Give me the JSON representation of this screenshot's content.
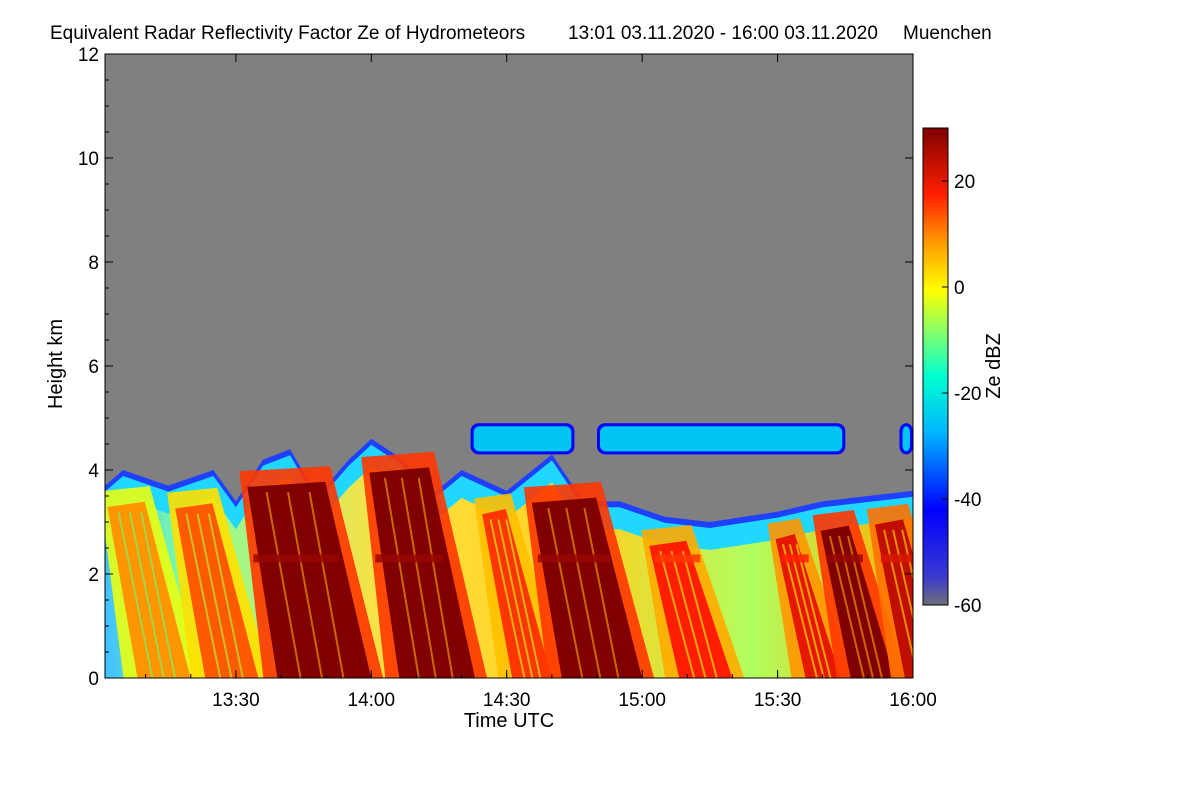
{
  "chart_data": {
    "type": "heatmap",
    "title": "Equivalent Radar Reflectivity Factor Ze of Hydrometeors",
    "time_range": "13:01 03.11.2020 - 16:00 03.11.2020",
    "location": "Muenchen",
    "xlabel": "Time UTC",
    "ylabel": "Height km",
    "x_ticks": [
      "13:30",
      "14:00",
      "14:30",
      "15:00",
      "15:30",
      "16:00"
    ],
    "x_range": [
      "13:01",
      "16:00"
    ],
    "y_ticks": [
      "0",
      "2",
      "4",
      "6",
      "8",
      "10",
      "12"
    ],
    "ylim": [
      0,
      12
    ],
    "colorbar": {
      "label": "Ze dBZ",
      "ticks": [
        "20",
        "0",
        "-20",
        "-40",
        "-60"
      ],
      "range": [
        -60,
        30
      ],
      "missing_color": "#808080"
    },
    "echo_top_km": [
      {
        "t": "13:01",
        "h": 3.7
      },
      {
        "t": "13:05",
        "h": 4.0
      },
      {
        "t": "13:15",
        "h": 3.7
      },
      {
        "t": "13:25",
        "h": 4.0
      },
      {
        "t": "13:30",
        "h": 3.4
      },
      {
        "t": "13:36",
        "h": 4.2
      },
      {
        "t": "13:42",
        "h": 4.4
      },
      {
        "t": "13:48",
        "h": 3.5
      },
      {
        "t": "13:55",
        "h": 4.2
      },
      {
        "t": "14:00",
        "h": 4.6
      },
      {
        "t": "14:07",
        "h": 4.2
      },
      {
        "t": "14:13",
        "h": 3.5
      },
      {
        "t": "14:20",
        "h": 4.0
      },
      {
        "t": "14:30",
        "h": 3.6
      },
      {
        "t": "14:40",
        "h": 4.3
      },
      {
        "t": "14:47",
        "h": 3.4
      },
      {
        "t": "14:55",
        "h": 3.4
      },
      {
        "t": "15:05",
        "h": 3.1
      },
      {
        "t": "15:15",
        "h": 3.0
      },
      {
        "t": "15:30",
        "h": 3.2
      },
      {
        "t": "15:40",
        "h": 3.4
      },
      {
        "t": "15:50",
        "h": 3.5
      },
      {
        "t": "16:00",
        "h": 3.6
      }
    ],
    "cells": [
      {
        "t_start": "13:02",
        "t_end": "13:12",
        "ze_max_dbz": 10
      },
      {
        "t_start": "13:17",
        "t_end": "13:27",
        "ze_max_dbz": 15
      },
      {
        "t_start": "13:33",
        "t_end": "13:52",
        "ze_max_dbz": 30
      },
      {
        "t_start": "14:00",
        "t_end": "14:15",
        "ze_max_dbz": 30
      },
      {
        "t_start": "14:25",
        "t_end": "14:32",
        "ze_max_dbz": 18
      },
      {
        "t_start": "14:36",
        "t_end": "14:52",
        "ze_max_dbz": 30
      },
      {
        "t_start": "15:02",
        "t_end": "15:12",
        "ze_max_dbz": 20
      },
      {
        "t_start": "15:30",
        "t_end": "15:36",
        "ze_max_dbz": 22
      },
      {
        "t_start": "15:40",
        "t_end": "15:48",
        "ze_max_dbz": 30
      },
      {
        "t_start": "15:52",
        "t_end": "16:00",
        "ze_max_dbz": 25
      }
    ],
    "upper_layer": {
      "height_km": [
        4.3,
        4.9
      ],
      "ze_dbz": [
        -40,
        -25
      ],
      "segments": [
        [
          "14:22",
          "14:45"
        ],
        [
          "14:50",
          "15:45"
        ],
        [
          "15:57",
          "16:00"
        ]
      ]
    },
    "bright_band_km": 2.3
  }
}
